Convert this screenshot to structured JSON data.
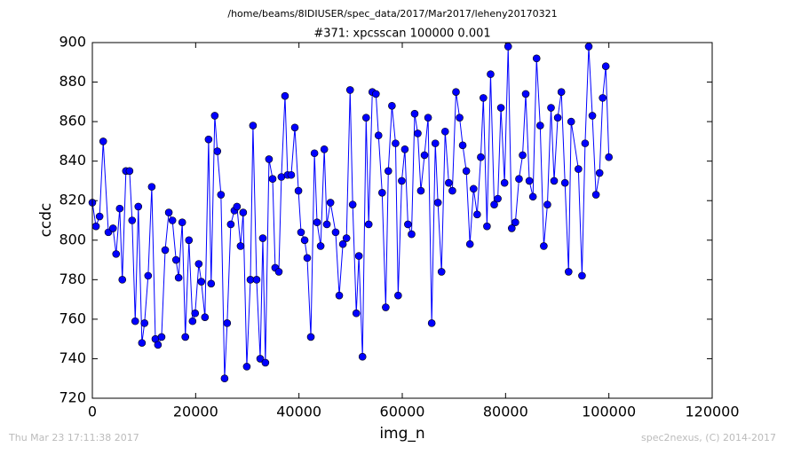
{
  "chart_data": {
    "type": "line",
    "suptitle": "/home/beams/8IDIUSER/spec_data/2017/Mar2017/leheny20170321",
    "title": "#371: xpcsscan 100000 0.001",
    "xlabel": "img_n",
    "ylabel": "ccdc",
    "footer_left": "Thu Mar 23 17:11:38 2017",
    "footer_right": "spec2nexus, (C) 2014-2017",
    "xlim": [
      0,
      120000
    ],
    "xticks": [
      0,
      20000,
      40000,
      60000,
      80000,
      100000,
      120000
    ],
    "ylim": [
      720,
      900
    ],
    "yticks": [
      720,
      740,
      760,
      780,
      800,
      820,
      840,
      860,
      880,
      900
    ],
    "x": [
      0,
      700,
      1400,
      2100,
      3100,
      4000,
      4600,
      5300,
      5800,
      6500,
      7200,
      7700,
      8300,
      8900,
      9600,
      10100,
      10800,
      11500,
      12200,
      12700,
      13400,
      14100,
      14800,
      15500,
      16200,
      16700,
      17400,
      18000,
      18700,
      19400,
      19900,
      20600,
      21100,
      21800,
      22500,
      23000,
      23700,
      24200,
      24900,
      25600,
      26100,
      26800,
      27500,
      28000,
      28700,
      29200,
      29900,
      30600,
      31100,
      31800,
      32500,
      33000,
      33500,
      34200,
      34900,
      35400,
      36100,
      36600,
      37300,
      37800,
      38500,
      39200,
      39900,
      40400,
      41100,
      41600,
      42300,
      43000,
      43500,
      44200,
      44900,
      45400,
      46100,
      47100,
      47800,
      48500,
      49200,
      49900,
      50400,
      51100,
      51600,
      52300,
      53000,
      53500,
      54200,
      54900,
      55400,
      56100,
      56800,
      57300,
      58000,
      58700,
      59200,
      59900,
      60500,
      61100,
      61800,
      62400,
      63000,
      63600,
      64300,
      65000,
      65700,
      66400,
      66900,
      67600,
      68300,
      69000,
      69700,
      70400,
      71100,
      71700,
      72400,
      73100,
      73800,
      74500,
      75200,
      75700,
      76400,
      77100,
      77800,
      78500,
      79100,
      79800,
      80500,
      81200,
      81900,
      82600,
      83300,
      83900,
      84600,
      85300,
      86000,
      86700,
      87400,
      88100,
      88800,
      89400,
      90100,
      90800,
      91500,
      92200,
      92700,
      94100,
      94800,
      95400,
      96100,
      96800,
      97500,
      98200,
      98800,
      99400,
      100000
    ],
    "series": [
      {
        "name": "ccdc",
        "color": "#0000ff",
        "values": [
          819,
          807,
          812,
          850,
          804,
          806,
          793,
          816,
          780,
          835,
          835,
          810,
          759,
          817,
          748,
          758,
          782,
          827,
          750,
          747,
          751,
          795,
          814,
          810,
          790,
          781,
          809,
          751,
          800,
          759,
          763,
          788,
          779,
          761,
          851,
          778,
          863,
          845,
          823,
          730,
          758,
          808,
          815,
          817,
          797,
          814,
          736,
          780,
          858,
          780,
          740,
          801,
          738,
          841,
          831,
          786,
          784,
          832,
          873,
          833,
          833,
          857,
          825,
          804,
          800,
          791,
          751,
          844,
          809,
          797,
          846,
          808,
          819,
          804,
          772,
          798,
          801,
          876,
          818,
          763,
          792,
          741,
          862,
          808,
          875,
          874,
          853,
          824,
          766,
          835,
          868,
          849,
          772,
          830,
          846,
          808,
          803,
          864,
          854,
          825,
          843,
          862,
          758,
          849,
          819,
          784,
          855,
          829,
          825,
          875,
          862,
          848,
          835,
          798,
          826,
          813,
          842,
          872,
          807,
          884,
          818,
          821,
          867,
          829,
          898,
          806,
          809,
          831,
          843,
          874,
          830,
          822,
          892,
          858,
          797,
          818,
          867,
          830,
          862,
          875,
          829,
          784,
          860,
          836,
          782,
          849,
          898,
          863,
          823,
          834,
          872,
          888,
          842
        ]
      }
    ]
  }
}
